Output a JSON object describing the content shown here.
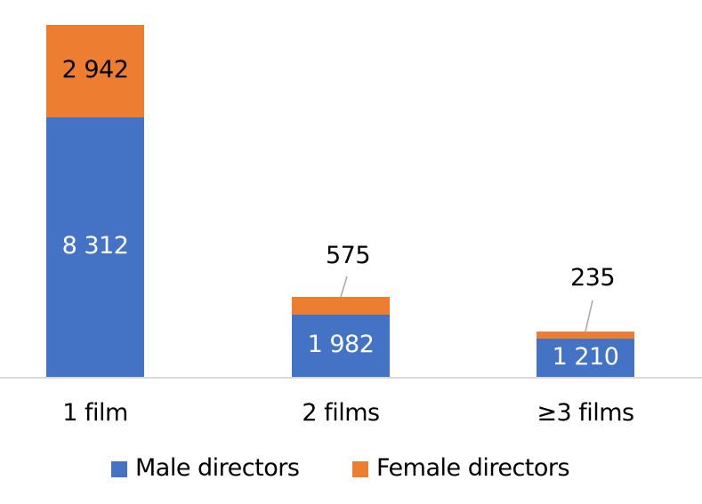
{
  "chart_data": {
    "type": "bar",
    "stacked": true,
    "title": "",
    "xlabel": "",
    "ylabel": "",
    "categories": [
      "1 film",
      "2 films",
      "≥3 films"
    ],
    "series": [
      {
        "name": "Male directors",
        "color": "#4472C4",
        "values": [
          8312,
          1982,
          1210
        ],
        "labels": [
          "8 312",
          "1 982",
          "1 210"
        ]
      },
      {
        "name": "Female directors",
        "color": "#ED7D31",
        "values": [
          2942,
          575,
          235
        ],
        "labels": [
          "2 942",
          "575",
          "235"
        ]
      }
    ],
    "grid": false,
    "legend_position": "bottom",
    "y_axis_visible": false
  },
  "legend": {
    "male_label": "Male directors",
    "female_label": "Female directors"
  }
}
